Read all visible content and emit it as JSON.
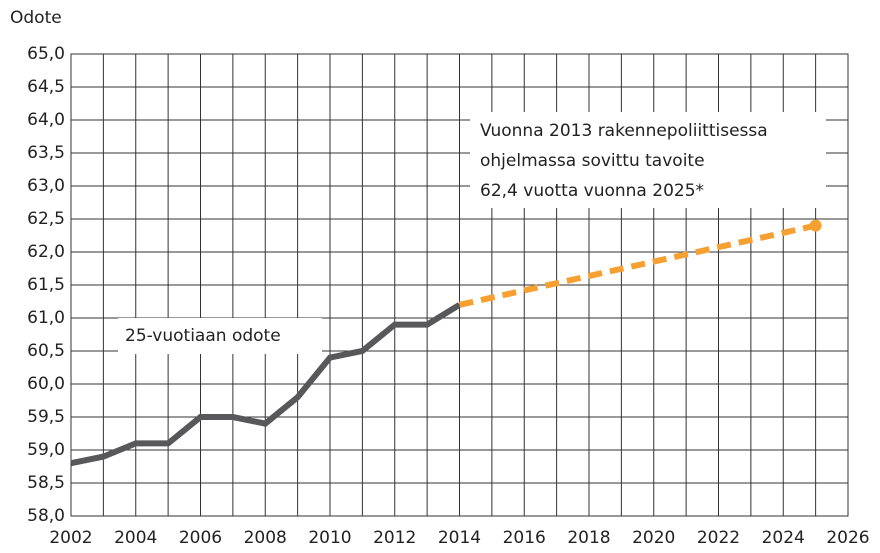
{
  "chart_data": {
    "type": "line",
    "y_axis_label": "Odote",
    "xlim": [
      2002,
      2026
    ],
    "xticks": [
      2002,
      2004,
      2006,
      2008,
      2010,
      2012,
      2014,
      2016,
      2018,
      2020,
      2022,
      2024,
      2026
    ],
    "minor_xticks": [
      2003,
      2005,
      2007,
      2009,
      2011,
      2013,
      2015,
      2017,
      2019,
      2021,
      2023,
      2025
    ],
    "ylim": [
      58,
      65
    ],
    "yticks": [
      {
        "value": 58,
        "label": "58,0"
      },
      {
        "value": 58.5,
        "label": "58,5"
      },
      {
        "value": 59,
        "label": "59,0"
      },
      {
        "value": 59.5,
        "label": "59,5"
      },
      {
        "value": 60,
        "label": "60,0"
      },
      {
        "value": 60.5,
        "label": "60,5"
      },
      {
        "value": 61,
        "label": "61,0"
      },
      {
        "value": 61.5,
        "label": "61,5"
      },
      {
        "value": 62,
        "label": "62,0"
      },
      {
        "value": 62.5,
        "label": "62,5"
      },
      {
        "value": 63,
        "label": "63,0"
      },
      {
        "value": 63.5,
        "label": "63,5"
      },
      {
        "value": 64,
        "label": "64,0"
      },
      {
        "value": 64.5,
        "label": "64,5"
      },
      {
        "value": 65,
        "label": "65,0"
      }
    ],
    "grid": true,
    "series": [
      {
        "color": "#58585a",
        "dashed": false,
        "end_marker": false,
        "x": [
          2002,
          2003,
          2004,
          2005,
          2006,
          2007,
          2008,
          2009,
          2010,
          2011,
          2012,
          2013,
          2014
        ],
        "values": [
          58.8,
          58.9,
          59.1,
          59.1,
          59.5,
          59.5,
          59.4,
          59.8,
          60.4,
          60.5,
          60.9,
          60.9,
          61.2
        ]
      },
      {
        "color": "#f6a031",
        "dashed": true,
        "end_marker": true,
        "x": [
          2014,
          2025
        ],
        "values": [
          61.2,
          62.4
        ]
      }
    ],
    "annotations": [
      [
        "25-vuotiaan odote"
      ],
      [
        "Vuonna 2013 rakennepoliittisessa",
        "ohjelmassa sovittu tavoite",
        "62,4 vuotta vuonna 2025*"
      ]
    ]
  }
}
